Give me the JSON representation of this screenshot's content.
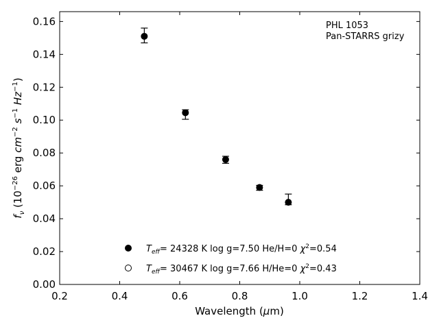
{
  "chart_data": {
    "type": "scatter",
    "title": "",
    "xlabel": "Wavelength (μm)",
    "ylabel": "fν (10⁻²⁶ erg cm⁻² s⁻¹ Hz⁻¹)",
    "xlim": [
      0.2,
      1.4
    ],
    "ylim": [
      0.0,
      0.166
    ],
    "xticks": [
      "0.2",
      "0.4",
      "0.6",
      "0.8",
      "1.0",
      "1.2",
      "1.4"
    ],
    "yticks": [
      "0.00",
      "0.02",
      "0.04",
      "0.06",
      "0.08",
      "0.10",
      "0.12",
      "0.14",
      "0.16"
    ],
    "grid": false,
    "annotations": [
      "PHL 1053",
      "Pan-STARRS grizy"
    ],
    "legend_position": "lower-center",
    "series": [
      {
        "label": "T_eff= 24328 K  log g=7.50  He/H=0  χ²=0.54",
        "marker": "filled-circle",
        "points": [
          {
            "x": 0.482,
            "y": 0.151
          },
          {
            "x": 0.619,
            "y": 0.1045
          },
          {
            "x": 0.753,
            "y": 0.076
          },
          {
            "x": 0.866,
            "y": 0.059
          },
          {
            "x": 0.962,
            "y": 0.05
          }
        ]
      },
      {
        "label": "T_eff= 30467 K  log g=7.66  H/He=0  χ²=0.43",
        "marker": "open-circle",
        "points": []
      }
    ],
    "errorbars": [
      {
        "x": 0.482,
        "ylo": 0.147,
        "yhi": 0.156
      },
      {
        "x": 0.619,
        "ylo": 0.1005,
        "yhi": 0.1063
      },
      {
        "x": 0.753,
        "ylo": 0.0737,
        "yhi": 0.078
      },
      {
        "x": 0.866,
        "ylo": 0.0573,
        "yhi": 0.0603
      },
      {
        "x": 0.962,
        "ylo": 0.0485,
        "yhi": 0.055
      }
    ]
  }
}
